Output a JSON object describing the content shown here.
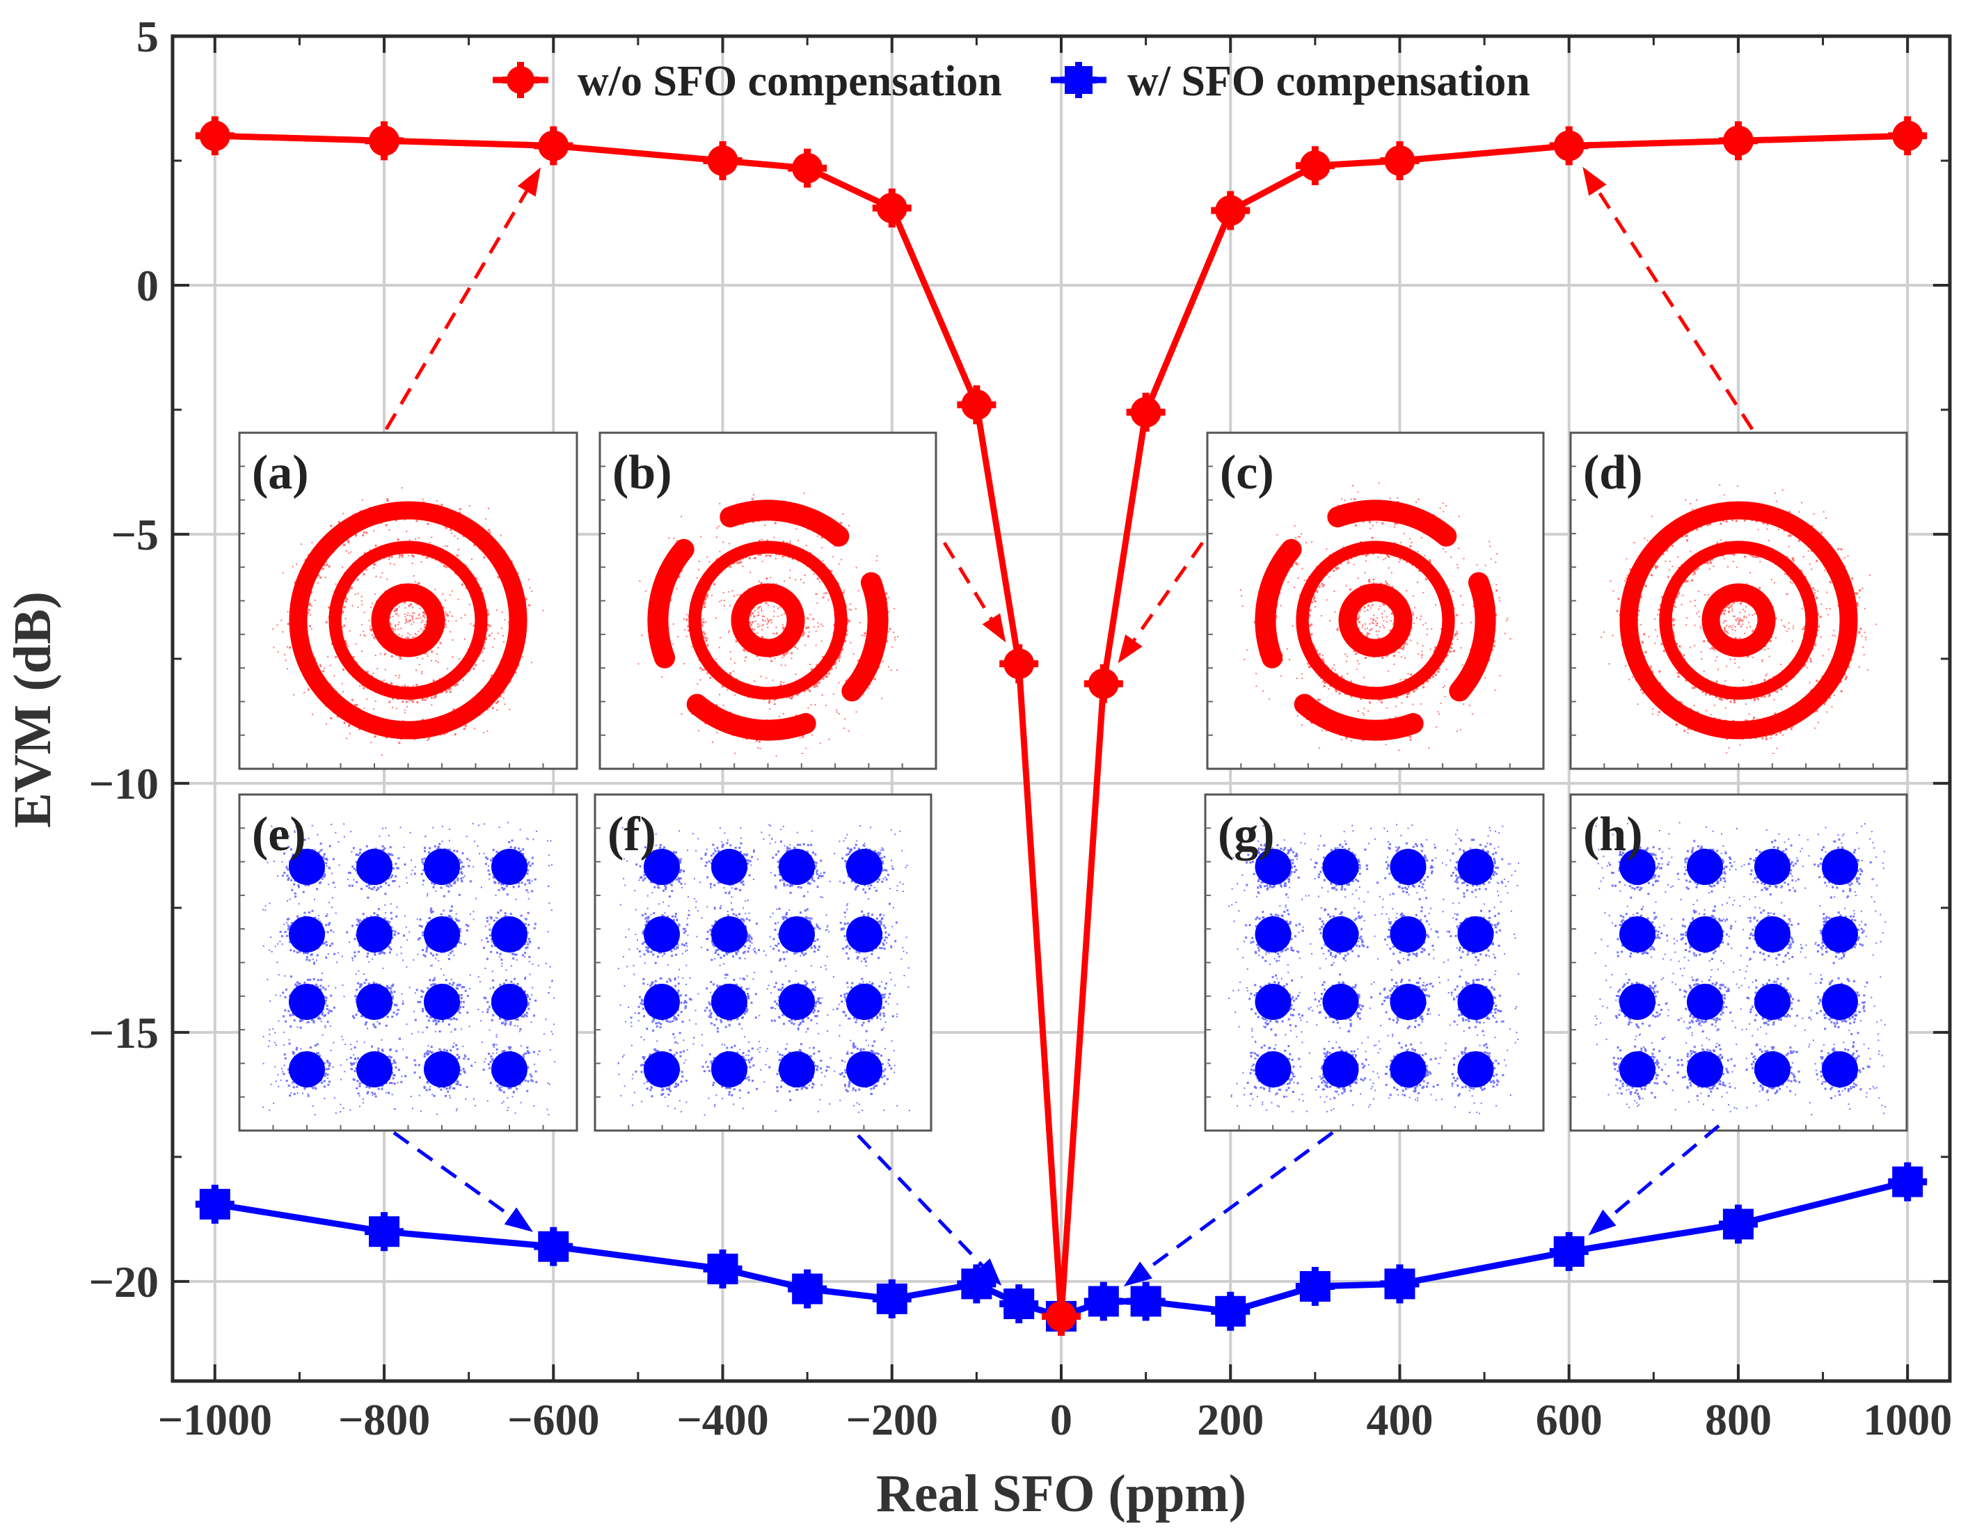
{
  "chart_data": {
    "type": "line",
    "title": "",
    "xlabel": "Real SFO (ppm)",
    "ylabel": "EVM (dB)",
    "xlim": [
      -1050,
      1050
    ],
    "ylim": [
      -22,
      5
    ],
    "x_ticks": [
      -1000,
      -800,
      -600,
      -400,
      -200,
      0,
      200,
      400,
      600,
      800,
      1000
    ],
    "x_tick_labels": [
      "−1000",
      "−800",
      "−600",
      "−400",
      "−200",
      "0",
      "200",
      "400",
      "600",
      "800",
      "1000"
    ],
    "y_ticks": [
      5,
      0,
      -5,
      -10,
      -15,
      -20
    ],
    "y_tick_labels": [
      "5",
      "0",
      "−5",
      "−10",
      "−15",
      "−20"
    ],
    "grid": true,
    "legend_position": "top-center",
    "series": [
      {
        "name": "w/o SFO compensation",
        "color": "#ff0000",
        "marker": "circle",
        "x": [
          -1000,
          -800,
          -600,
          -400,
          -300,
          -200,
          -100,
          -50,
          0,
          50,
          100,
          200,
          300,
          400,
          600,
          800,
          1000
        ],
        "y": [
          3.0,
          2.9,
          2.8,
          2.5,
          2.35,
          1.55,
          -2.4,
          -7.6,
          -20.7,
          -8.0,
          -2.55,
          1.5,
          2.4,
          2.5,
          2.8,
          2.9,
          3.0
        ]
      },
      {
        "name": "w/ SFO compensation",
        "color": "#0000ff",
        "marker": "square",
        "x": [
          -1000,
          -800,
          -600,
          -400,
          -300,
          -200,
          -100,
          -50,
          0,
          50,
          100,
          200,
          300,
          400,
          600,
          800,
          1000
        ],
        "y": [
          -18.45,
          -19.0,
          -19.3,
          -19.75,
          -20.15,
          -20.35,
          -20.05,
          -20.45,
          -20.7,
          -20.4,
          -20.4,
          -20.6,
          -20.1,
          -20.05,
          -19.4,
          -18.85,
          -18.0
        ]
      }
    ],
    "insets": [
      {
        "label": "(a)",
        "kind": "ring",
        "color": "#ff0000",
        "sfo": -600
      },
      {
        "label": "(b)",
        "kind": "ring-partial",
        "color": "#ff0000",
        "sfo": -50
      },
      {
        "label": "(c)",
        "kind": "ring-partial",
        "color": "#ff0000",
        "sfo": 50
      },
      {
        "label": "(d)",
        "kind": "ring",
        "color": "#ff0000",
        "sfo": 600
      },
      {
        "label": "(e)",
        "kind": "qam16",
        "color": "#0000ff",
        "sfo": -600
      },
      {
        "label": "(f)",
        "kind": "qam16",
        "color": "#0000ff",
        "sfo": -50
      },
      {
        "label": "(g)",
        "kind": "qam16",
        "color": "#0000ff",
        "sfo": 50
      },
      {
        "label": "(h)",
        "kind": "qam16",
        "color": "#0000ff",
        "sfo": 600
      }
    ]
  }
}
